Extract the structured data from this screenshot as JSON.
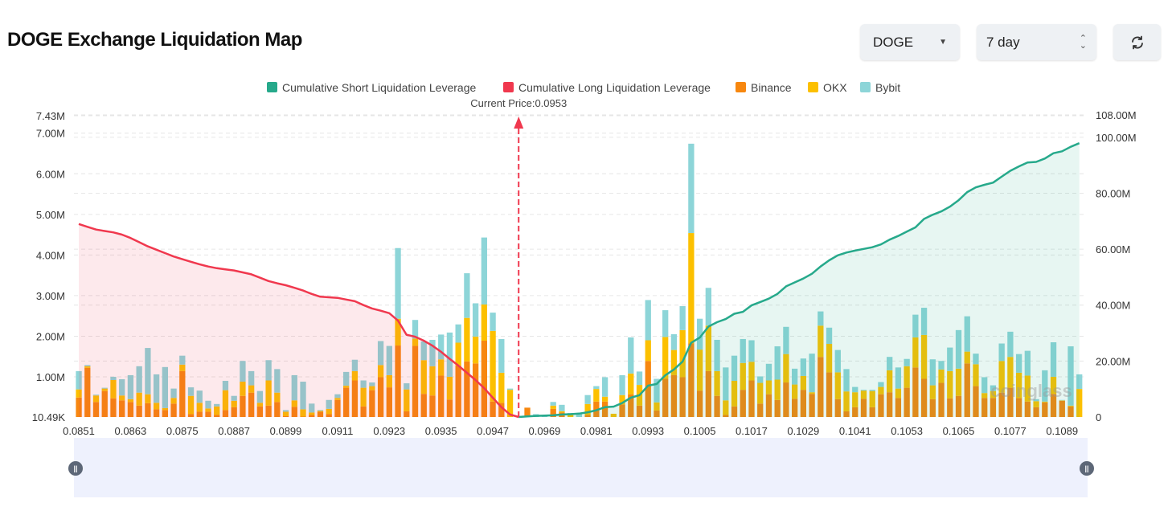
{
  "header": {
    "title": "DOGE Exchange Liquidation Map",
    "coin_select": "DOGE",
    "range_select": "7 day",
    "refresh_icon": "refresh-icon"
  },
  "colors": {
    "short_cumulative": "#26a98b",
    "long_cumulative": "#f0384e",
    "binance": "#f7870f",
    "okx": "#fcc000",
    "bybit": "#8dd5d8"
  },
  "chart_data": {
    "type": "bar",
    "stacked": true,
    "current_price_label": "Current Price:0.0953",
    "current_price": "0.0953",
    "watermark": "coinglass",
    "legend": [
      "Cumulative Short Liquidation Leverage",
      "Cumulative Long Liquidation Leverage",
      "Binance",
      "OKX",
      "Bybit"
    ],
    "legend_placement": "top",
    "grid": true,
    "left_axis": {
      "ticks": [
        "10.49K",
        "1.00M",
        "2.00M",
        "3.00M",
        "4.00M",
        "5.00M",
        "6.00M",
        "7.00M",
        "7.43M"
      ],
      "tick_values_m": [
        0.01049,
        1,
        2,
        3,
        4,
        5,
        6,
        7,
        7.43
      ],
      "range_m": [
        0.01049,
        7.43
      ]
    },
    "right_axis": {
      "ticks": [
        "0",
        "20.00M",
        "40.00M",
        "60.00M",
        "80.00M",
        "100.00M",
        "108.00M"
      ],
      "tick_values_m": [
        0,
        20,
        40,
        60,
        80,
        100,
        108
      ],
      "range_m": [
        0,
        108
      ]
    },
    "x_tick_labels": [
      "0.0851",
      "0.0863",
      "0.0875",
      "0.0887",
      "0.0899",
      "0.0911",
      "0.0923",
      "0.0935",
      "0.0947",
      "0.0969",
      "0.0981",
      "0.0993",
      "0.1005",
      "0.1017",
      "0.1029",
      "0.1041",
      "0.1053",
      "0.1065",
      "0.1077",
      "0.1089"
    ],
    "categories": [
      "0.0851",
      "0.0853",
      "0.0855",
      "0.0857",
      "0.0859",
      "0.0861",
      "0.0863",
      "0.0865",
      "0.0867",
      "0.0869",
      "0.0871",
      "0.0873",
      "0.0875",
      "0.0877",
      "0.0879",
      "0.0881",
      "0.0883",
      "0.0885",
      "0.0887",
      "0.0889",
      "0.0891",
      "0.0893",
      "0.0895",
      "0.0897",
      "0.0899",
      "0.0901",
      "0.0903",
      "0.0905",
      "0.0907",
      "0.0909",
      "0.0911",
      "0.0913",
      "0.0915",
      "0.0917",
      "0.0919",
      "0.0921",
      "0.0923",
      "0.0925",
      "0.0927",
      "0.0929",
      "0.0931",
      "0.0933",
      "0.0935",
      "0.0937",
      "0.0939",
      "0.0941",
      "0.0943",
      "0.0945",
      "0.0947",
      "0.0949",
      "0.0951",
      "0.0953",
      "0.0965",
      "0.0967",
      "0.0969",
      "0.0971",
      "0.0973",
      "0.0975",
      "0.0977",
      "0.0979",
      "0.0981",
      "0.0983",
      "0.0985",
      "0.0987",
      "0.0989",
      "0.0991",
      "0.0993",
      "0.0995",
      "0.0997",
      "0.0999",
      "0.1001",
      "0.1003",
      "0.1005",
      "0.1007",
      "0.1009",
      "0.1011",
      "0.1013",
      "0.1015",
      "0.1017",
      "0.1019",
      "0.1021",
      "0.1023",
      "0.1025",
      "0.1027",
      "0.1029",
      "0.1031",
      "0.1033",
      "0.1035",
      "0.1037",
      "0.1039",
      "0.1041",
      "0.1043",
      "0.1045",
      "0.1047",
      "0.1049",
      "0.1051",
      "0.1053",
      "0.1055",
      "0.1057",
      "0.1059",
      "0.1061",
      "0.1063",
      "0.1065",
      "0.1067",
      "0.1069",
      "0.1071",
      "0.1073",
      "0.1075",
      "0.1077",
      "0.1079",
      "0.1081",
      "0.1083",
      "0.1085",
      "0.1087",
      "0.1089",
      "0.1091",
      "0.1093"
    ],
    "series": [
      {
        "name": "Binance",
        "axis": "left",
        "unit": "M",
        "values": [
          0.48,
          1.21,
          0.37,
          0.64,
          0.46,
          0.41,
          0.37,
          0.28,
          0.34,
          0.19,
          0.17,
          0.33,
          1.13,
          0.07,
          0.13,
          0.13,
          0.05,
          0.17,
          0.24,
          0.52,
          0.6,
          0.26,
          0.28,
          0.37,
          0.02,
          0.25,
          0.01,
          0.05,
          0.13,
          0.07,
          0.42,
          0.72,
          0.9,
          0.26,
          0.66,
          0.98,
          0.73,
          1.76,
          0.14,
          1.75,
          0.57,
          0.53,
          1.02,
          0.43,
          1.27,
          1.37,
          1.32,
          1.88,
          0.38,
          0.35,
          0,
          0,
          0.23,
          0,
          0,
          0.2,
          0.11,
          0,
          0,
          0.05,
          0.38,
          0.38,
          0,
          0.31,
          0.56,
          0.28,
          1.38,
          0.16,
          0.94,
          1.03,
          0.98,
          1.81,
          0.65,
          1.13,
          0.52,
          0.05,
          0.26,
          0.67,
          0.9,
          0.33,
          0.56,
          0.42,
          0.85,
          0.45,
          0.67,
          0.57,
          1.48,
          1.1,
          0.44,
          0.14,
          0.24,
          0.45,
          0.24,
          0.56,
          0.61,
          0.47,
          0.72,
          1.22,
          0.94,
          0.44,
          0.84,
          0.46,
          0.52,
          1.32,
          0.76,
          0.47,
          0.47,
          0.6,
          0.72,
          0.47,
          0.38,
          0.24,
          0.36,
          0.57,
          0.4,
          0.26,
          0
        ]
      },
      {
        "name": "OKX",
        "axis": "left",
        "unit": "M",
        "values": [
          0.2,
          0.04,
          0.16,
          0.06,
          0.45,
          0.12,
          0.07,
          0.32,
          0.22,
          0.16,
          0.05,
          0.14,
          0.16,
          0.45,
          0.22,
          0.08,
          0.21,
          0.49,
          0.16,
          0.35,
          0.18,
          0.09,
          0.62,
          0.23,
          0.11,
          0.16,
          0.18,
          0.06,
          0.02,
          0.13,
          0.05,
          0.05,
          0.23,
          0.46,
          0.1,
          0.3,
          0.3,
          0.66,
          0.54,
          0.18,
          0.83,
          0.72,
          0.4,
          0.56,
          0.56,
          1.07,
          0.66,
          0.89,
          1.74,
          0.74,
          0.67,
          0,
          0,
          0,
          0,
          0.08,
          0.03,
          0.08,
          0,
          0.27,
          0.31,
          0.12,
          0.08,
          0.23,
          0.51,
          0.51,
          0.51,
          0.2,
          1.03,
          0.62,
          1.16,
          2.72,
          1.01,
          1.12,
          0.61,
          0.36,
          0.63,
          0.66,
          0.46,
          0.51,
          0.34,
          0.5,
          0.7,
          0.35,
          0.34,
          0.04,
          0.77,
          0.7,
          0.66,
          0.49,
          0.37,
          0.2,
          0.4,
          0.18,
          0.54,
          0.23,
          0.53,
          0.74,
          1.08,
          0.34,
          0.33,
          0.67,
          0.67,
          0.29,
          0.54,
          0.12,
          0.17,
          0.78,
          0.76,
          0.62,
          0.64,
          0.15,
          0.02,
          0.42,
          0.01,
          0.02,
          0.69
        ]
      },
      {
        "name": "Bybit",
        "axis": "left",
        "unit": "M",
        "values": [
          0.45,
          0.03,
          0.02,
          0.02,
          0.08,
          0.4,
          0.59,
          0.65,
          1.14,
          0.7,
          1.01,
          0.23,
          0.22,
          0.21,
          0.3,
          0.19,
          0.06,
          0.23,
          0.12,
          0.51,
          0.35,
          0.29,
          0.5,
          0.58,
          0.04,
          0.62,
          0.68,
          0.22,
          0.02,
          0.22,
          0.09,
          0.34,
          0.28,
          0.18,
          0.09,
          0.59,
          0.72,
          1.74,
          0.15,
          0.46,
          0.46,
          0.65,
          0.61,
          1.09,
          0.45,
          1.1,
          0.82,
          1.65,
          0.45,
          0.83,
          0.03,
          0,
          0,
          0.07,
          0.02,
          0.09,
          0.16,
          0.02,
          0.07,
          0.22,
          0.07,
          0.48,
          0,
          0.49,
          0.89,
          0.33,
          0.99,
          0.58,
          0.66,
          0.39,
          0.59,
          2.2,
          0.76,
          0.93,
          0.77,
          0.81,
          0.62,
          0.59,
          0.53,
          0.16,
          0.41,
          0.82,
          0.67,
          0.39,
          0.43,
          0.95,
          0.35,
          0.4,
          0.55,
          0.55,
          0.13,
          0.02,
          0.03,
          0.12,
          0.33,
          0.52,
          0.18,
          0.56,
          0.67,
          0.64,
          0.21,
          0.58,
          0.95,
          0.87,
          0.26,
          0.39,
          0.14,
          0.43,
          0.62,
          0.46,
          0.61,
          0.05,
          0.77,
          0.85,
          0.01,
          1.46,
          0.36
        ]
      },
      {
        "name": "Cumulative Long Liquidation Leverage",
        "axis": "right",
        "unit": "M",
        "type": "area",
        "values": [
          69,
          68,
          67,
          66.5,
          66,
          65.2,
          64,
          62.5,
          61,
          59.8,
          58.6,
          57.4,
          56.4,
          55.5,
          54.6,
          53.8,
          53.2,
          52.8,
          52.4,
          51.7,
          51,
          49.8,
          48.6,
          47.8,
          47.1,
          46.2,
          45.2,
          44,
          43,
          42.8,
          42.6,
          42,
          41.4,
          40,
          38.8,
          38,
          37.1,
          34.5,
          29.4,
          28.7,
          27.3,
          25.5,
          23.3,
          20.8,
          18.4,
          15.8,
          13.2,
          10.3,
          6.9,
          3.5,
          0.9,
          0,
          null,
          null,
          null,
          null,
          null,
          null,
          null,
          null,
          null,
          null,
          null,
          null,
          null,
          null,
          null,
          null,
          null,
          null,
          null,
          null,
          null,
          null,
          null,
          null,
          null,
          null,
          null,
          null,
          null,
          null,
          null,
          null,
          null,
          null,
          null,
          null,
          null,
          null,
          null,
          null,
          null,
          null,
          null,
          null,
          null,
          null,
          null,
          null,
          null,
          null,
          null,
          null,
          null,
          null,
          null,
          null,
          null,
          null,
          null,
          null,
          null,
          null,
          null,
          null,
          null
        ]
      },
      {
        "name": "Cumulative Short Liquidation Leverage",
        "axis": "right",
        "unit": "M",
        "type": "area",
        "values": [
          null,
          null,
          null,
          null,
          null,
          null,
          null,
          null,
          null,
          null,
          null,
          null,
          null,
          null,
          null,
          null,
          null,
          null,
          null,
          null,
          null,
          null,
          null,
          null,
          null,
          null,
          null,
          null,
          null,
          null,
          null,
          null,
          null,
          null,
          null,
          null,
          null,
          null,
          null,
          null,
          null,
          null,
          null,
          null,
          null,
          null,
          null,
          null,
          null,
          null,
          null,
          0,
          0.2,
          0.4,
          0.5,
          0.6,
          0.9,
          1.0,
          1.2,
          1.7,
          2.4,
          3.5,
          3.7,
          5,
          6.9,
          7.8,
          11.2,
          11.8,
          14.9,
          17,
          19.8,
          26.5,
          28.4,
          32.3,
          33.9,
          35,
          36.9,
          37.6,
          39.9,
          41.1,
          42.3,
          44,
          46.7,
          48.1,
          49.5,
          51.2,
          53.8,
          56,
          57.8,
          58.8,
          59.5,
          60.1,
          60.7,
          61.7,
          63.4,
          64.7,
          66.3,
          67.8,
          70.8,
          72.3,
          73.5,
          75.2,
          77.5,
          80.4,
          82.1,
          83,
          83.8,
          85.9,
          88,
          89.6,
          91,
          91.2,
          92.4,
          94.3,
          95,
          96.6,
          97.9
        ]
      }
    ]
  }
}
